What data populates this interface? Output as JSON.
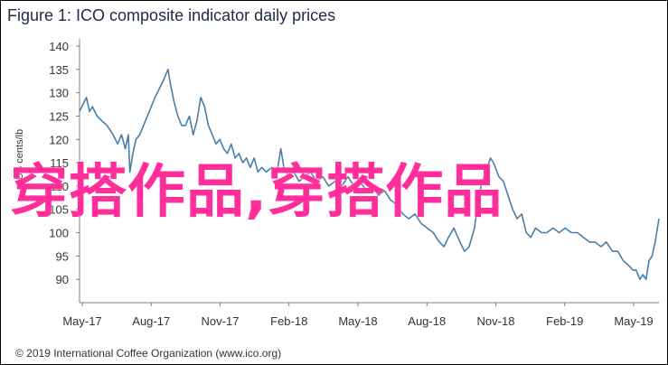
{
  "title": "Figure 1: ICO composite indicator daily prices",
  "copyright": "© 2019 International Coffee Organization (www.ico.org)",
  "overlay_text": "穿搭作品,穿搭作品",
  "colors": {
    "line": "#4a7ea8",
    "axis": "#7f7f7f",
    "overlay": "#ff2e9a",
    "title": "#1f2a44"
  },
  "chart_data": {
    "type": "line",
    "title": "Figure 1: ICO composite indicator daily prices",
    "ylabel": "US cents/lb",
    "xlabel": "",
    "ylim": [
      85,
      140
    ],
    "xlim": [
      "2017-05-01",
      "2019-05-31"
    ],
    "grid": false,
    "y_ticks": [
      90,
      95,
      100,
      105,
      110,
      115,
      120,
      125,
      130,
      135,
      140
    ],
    "x_ticks": [
      "May-17",
      "Aug-17",
      "Nov-17",
      "Feb-18",
      "May-18",
      "Aug-18",
      "Nov-18",
      "Feb-19",
      "May-19"
    ],
    "series": [
      {
        "values": [
          [
            "2017-05-01",
            126
          ],
          [
            "2017-05-07",
            128
          ],
          [
            "2017-05-10",
            129
          ],
          [
            "2017-05-14",
            126
          ],
          [
            "2017-05-18",
            127
          ],
          [
            "2017-05-24",
            125
          ],
          [
            "2017-05-30",
            124
          ],
          [
            "2017-06-06",
            123
          ],
          [
            "2017-06-14",
            121
          ],
          [
            "2017-06-20",
            119
          ],
          [
            "2017-06-25",
            121
          ],
          [
            "2017-06-30",
            118
          ],
          [
            "2017-07-04",
            121
          ],
          [
            "2017-07-06",
            113
          ],
          [
            "2017-07-10",
            117
          ],
          [
            "2017-07-14",
            120
          ],
          [
            "2017-07-19",
            121
          ],
          [
            "2017-07-24",
            123
          ],
          [
            "2017-07-29",
            125
          ],
          [
            "2017-08-03",
            127
          ],
          [
            "2017-08-08",
            129
          ],
          [
            "2017-08-14",
            131
          ],
          [
            "2017-08-20",
            133
          ],
          [
            "2017-08-25",
            135
          ],
          [
            "2017-08-28",
            132
          ],
          [
            "2017-09-02",
            128
          ],
          [
            "2017-09-07",
            125
          ],
          [
            "2017-09-12",
            123
          ],
          [
            "2017-09-17",
            123
          ],
          [
            "2017-09-22",
            125
          ],
          [
            "2017-09-27",
            121
          ],
          [
            "2017-10-02",
            124
          ],
          [
            "2017-10-07",
            129
          ],
          [
            "2017-10-12",
            127
          ],
          [
            "2017-10-17",
            123
          ],
          [
            "2017-10-22",
            121
          ],
          [
            "2017-10-27",
            119
          ],
          [
            "2017-11-01",
            120
          ],
          [
            "2017-11-06",
            118
          ],
          [
            "2017-11-11",
            117
          ],
          [
            "2017-11-16",
            119
          ],
          [
            "2017-11-21",
            116
          ],
          [
            "2017-11-26",
            117
          ],
          [
            "2017-12-01",
            115
          ],
          [
            "2017-12-06",
            116
          ],
          [
            "2017-12-11",
            114
          ],
          [
            "2017-12-16",
            116
          ],
          [
            "2017-12-21",
            113
          ],
          [
            "2017-12-26",
            114
          ],
          [
            "2018-01-01",
            113
          ],
          [
            "2018-01-08",
            114
          ],
          [
            "2018-01-14",
            112
          ],
          [
            "2018-01-20",
            118
          ],
          [
            "2018-01-24",
            114
          ],
          [
            "2018-01-30",
            112
          ],
          [
            "2018-02-06",
            113
          ],
          [
            "2018-02-13",
            111
          ],
          [
            "2018-02-20",
            112
          ],
          [
            "2018-02-28",
            113
          ],
          [
            "2018-03-08",
            111
          ],
          [
            "2018-03-16",
            112
          ],
          [
            "2018-03-24",
            110
          ],
          [
            "2018-04-01",
            111
          ],
          [
            "2018-04-10",
            110
          ],
          [
            "2018-04-18",
            112
          ],
          [
            "2018-04-26",
            110
          ],
          [
            "2018-05-04",
            111
          ],
          [
            "2018-05-12",
            109
          ],
          [
            "2018-05-20",
            110
          ],
          [
            "2018-05-28",
            108
          ],
          [
            "2018-06-05",
            109
          ],
          [
            "2018-06-13",
            107
          ],
          [
            "2018-06-21",
            106
          ],
          [
            "2018-06-29",
            104
          ],
          [
            "2018-07-07",
            103
          ],
          [
            "2018-07-15",
            104
          ],
          [
            "2018-07-23",
            102
          ],
          [
            "2018-07-31",
            101
          ],
          [
            "2018-08-08",
            100
          ],
          [
            "2018-08-16",
            98
          ],
          [
            "2018-08-22",
            97
          ],
          [
            "2018-08-28",
            99
          ],
          [
            "2018-09-04",
            101
          ],
          [
            "2018-09-12",
            98
          ],
          [
            "2018-09-18",
            96
          ],
          [
            "2018-09-24",
            97
          ],
          [
            "2018-10-01",
            101
          ],
          [
            "2018-10-06",
            107
          ],
          [
            "2018-10-11",
            111
          ],
          [
            "2018-10-16",
            113
          ],
          [
            "2018-10-22",
            116
          ],
          [
            "2018-10-26",
            115
          ],
          [
            "2018-11-02",
            112
          ],
          [
            "2018-11-08",
            111
          ],
          [
            "2018-11-14",
            108
          ],
          [
            "2018-11-20",
            105
          ],
          [
            "2018-11-26",
            103
          ],
          [
            "2018-12-02",
            104
          ],
          [
            "2018-12-08",
            100
          ],
          [
            "2018-12-14",
            99
          ],
          [
            "2018-12-20",
            101
          ],
          [
            "2018-12-28",
            100
          ],
          [
            "2019-01-04",
            100
          ],
          [
            "2019-01-12",
            101
          ],
          [
            "2019-01-20",
            100
          ],
          [
            "2019-01-28",
            101
          ],
          [
            "2019-02-05",
            100
          ],
          [
            "2019-02-13",
            100
          ],
          [
            "2019-02-21",
            99
          ],
          [
            "2019-03-01",
            98
          ],
          [
            "2019-03-08",
            98
          ],
          [
            "2019-03-16",
            97
          ],
          [
            "2019-03-23",
            98
          ],
          [
            "2019-03-31",
            96
          ],
          [
            "2019-04-07",
            96
          ],
          [
            "2019-04-14",
            94
          ],
          [
            "2019-04-21",
            93
          ],
          [
            "2019-04-27",
            92
          ],
          [
            "2019-05-01",
            92
          ],
          [
            "2019-05-06",
            90
          ],
          [
            "2019-05-10",
            91
          ],
          [
            "2019-05-14",
            90
          ],
          [
            "2019-05-18",
            94
          ],
          [
            "2019-05-22",
            95
          ],
          [
            "2019-05-26",
            98
          ],
          [
            "2019-05-31",
            103
          ]
        ]
      }
    ]
  }
}
